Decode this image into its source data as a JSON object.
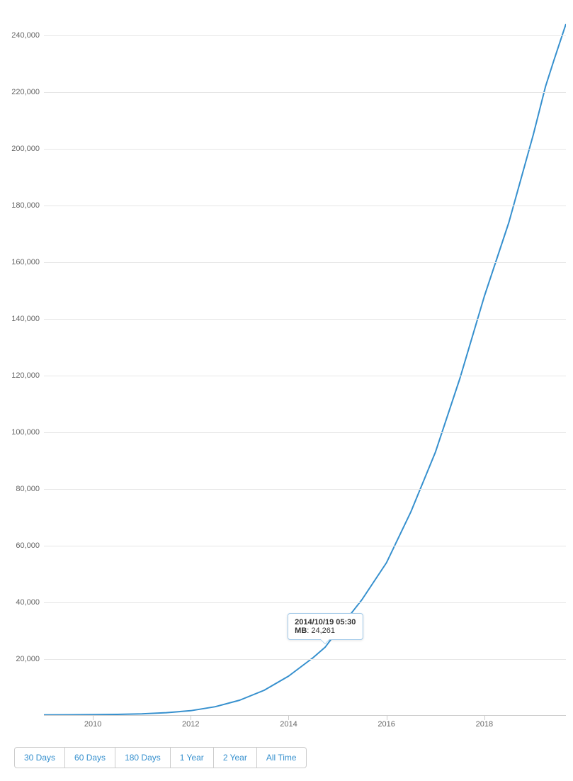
{
  "chart": {
    "type": "line",
    "line_color": "#3690ce",
    "line_width": 2,
    "background_color": "#ffffff",
    "grid_color": "#e6e6e6",
    "axis_tick_color": "#cccccc",
    "tick_label_color": "#666666",
    "tick_label_fontsize": 11,
    "ylim": [
      0,
      250000
    ],
    "ytick_step": 20000,
    "y_ticks": [
      20000,
      40000,
      60000,
      80000,
      100000,
      120000,
      140000,
      160000,
      180000,
      200000,
      220000,
      240000
    ],
    "y_tick_labels": [
      "20,000",
      "40,000",
      "60,000",
      "80,000",
      "100,000",
      "120,000",
      "140,000",
      "160,000",
      "180,000",
      "200,000",
      "220,000",
      "240,000"
    ],
    "xlim": [
      "2009-01",
      "2019-09"
    ],
    "x_ticks": [
      "2010",
      "2012",
      "2014",
      "2016",
      "2018"
    ],
    "series": [
      {
        "x": "2009-01",
        "y": 300
      },
      {
        "x": "2009-07",
        "y": 350
      },
      {
        "x": "2010-01",
        "y": 400
      },
      {
        "x": "2010-07",
        "y": 500
      },
      {
        "x": "2011-01",
        "y": 700
      },
      {
        "x": "2011-07",
        "y": 1100
      },
      {
        "x": "2012-01",
        "y": 1800
      },
      {
        "x": "2012-07",
        "y": 3200
      },
      {
        "x": "2013-01",
        "y": 5500
      },
      {
        "x": "2013-07",
        "y": 9000
      },
      {
        "x": "2014-01",
        "y": 14000
      },
      {
        "x": "2014-07",
        "y": 20500
      },
      {
        "x": "2014-10",
        "y": 24261
      },
      {
        "x": "2015-01",
        "y": 30000
      },
      {
        "x": "2015-07",
        "y": 41000
      },
      {
        "x": "2016-01",
        "y": 54000
      },
      {
        "x": "2016-07",
        "y": 72000
      },
      {
        "x": "2017-01",
        "y": 93000
      },
      {
        "x": "2017-07",
        "y": 119000
      },
      {
        "x": "2018-01",
        "y": 148000
      },
      {
        "x": "2018-04",
        "y": 161000
      },
      {
        "x": "2018-07",
        "y": 174000
      },
      {
        "x": "2019-01",
        "y": 205000
      },
      {
        "x": "2019-04",
        "y": 222000
      },
      {
        "x": "2019-06",
        "y": 231000
      },
      {
        "x": "2019-09",
        "y": 244000
      }
    ]
  },
  "tooltip": {
    "date": "2014/10/19 05:30",
    "label": "MB",
    "value": "24,261",
    "point_x": "2014-10",
    "point_y": 24261
  },
  "buttons": [
    {
      "label": "30 Days"
    },
    {
      "label": "60 Days"
    },
    {
      "label": "180 Days"
    },
    {
      "label": "1 Year"
    },
    {
      "label": "2 Year"
    },
    {
      "label": "All Time"
    }
  ]
}
